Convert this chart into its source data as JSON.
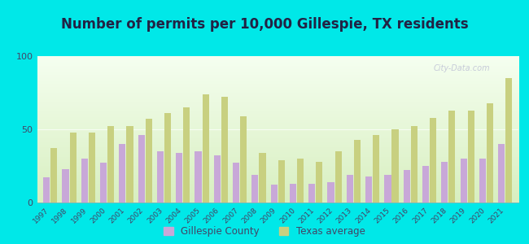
{
  "title": "Number of permits per 10,000 Gillespie, TX residents",
  "years": [
    1997,
    1998,
    1999,
    2000,
    2001,
    2002,
    2003,
    2004,
    2005,
    2006,
    2007,
    2008,
    2009,
    2010,
    2011,
    2012,
    2013,
    2014,
    2015,
    2016,
    2017,
    2018,
    2019,
    2020,
    2021
  ],
  "gillespie": [
    17,
    23,
    30,
    27,
    40,
    46,
    35,
    34,
    35,
    32,
    27,
    19,
    12,
    13,
    13,
    14,
    19,
    18,
    19,
    22,
    25,
    28,
    30,
    30,
    40
  ],
  "texas": [
    37,
    48,
    48,
    52,
    52,
    57,
    61,
    65,
    74,
    72,
    59,
    34,
    29,
    30,
    28,
    35,
    43,
    46,
    50,
    52,
    58,
    63,
    63,
    68,
    85
  ],
  "gillespie_color": "#c8a8d8",
  "texas_color": "#c8d080",
  "background_top": "#f5fff0",
  "background_bottom": "#d8efc0",
  "outer_background": "#00e8e8",
  "ylim": [
    0,
    100
  ],
  "yticks": [
    0,
    50,
    100
  ],
  "legend_gillespie": "Gillespie County",
  "legend_texas": "Texas average",
  "title_fontsize": 12,
  "title_color": "#222244",
  "bar_width": 0.35
}
